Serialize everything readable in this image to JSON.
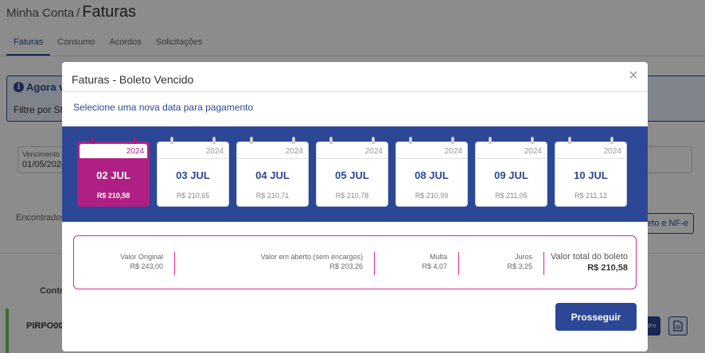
{
  "page": {
    "breadcrumb": "Minha Conta",
    "breadcrumb_sep": "/",
    "title": "Faturas",
    "tabs": [
      {
        "label": "Faturas",
        "active": true
      },
      {
        "label": "Consumo",
        "active": false
      },
      {
        "label": "Acordos",
        "active": false
      },
      {
        "label": "Solicitações",
        "active": false
      }
    ],
    "info_title": "Agora vo",
    "info_text": "Filtre por Sta",
    "due_label": "Vencimento",
    "due_value": "01/05/2024",
    "found_text": "Encontrados",
    "boleto_button": "eto e NF-e",
    "contract_header": "Contra",
    "row_id": "PIRPO000",
    "nfe_button": "NFe",
    "accent_color": "#2b4796",
    "status_color": "#6cbf59"
  },
  "modal": {
    "title": "Faturas - Boleto Vencido",
    "close_icon": "close-icon",
    "subtitle": "Selecione uma nova data para pagamento",
    "dates": [
      {
        "year": "2024",
        "day": "02 JUL",
        "amount": "R$ 210,58",
        "selected": true
      },
      {
        "year": "2024",
        "day": "03 JUL",
        "amount": "R$ 210,65",
        "selected": false
      },
      {
        "year": "2024",
        "day": "04 JUL",
        "amount": "R$ 210,71",
        "selected": false
      },
      {
        "year": "2024",
        "day": "05 JUL",
        "amount": "R$ 210,78",
        "selected": false
      },
      {
        "year": "2024",
        "day": "08 JUL",
        "amount": "R$ 210,99",
        "selected": false
      },
      {
        "year": "2024",
        "day": "09 JUL",
        "amount": "R$ 211,05",
        "selected": false
      },
      {
        "year": "2024",
        "day": "10 JUL",
        "amount": "R$ 211,12",
        "selected": false
      }
    ],
    "summary": {
      "original_label": "Valor Original",
      "original_value": "R$ 243,00",
      "open_label": "Valor em aberto (sem encargos)",
      "open_value": "R$ 203,26",
      "fine_label": "Multa",
      "fine_value": "R$ 4,07",
      "interest_label": "Juros",
      "interest_value": "R$ 3,25",
      "total_label": "Valor total do boleto",
      "total_value": "R$ 210,58"
    },
    "proceed_button": "Prosseguir",
    "selected_color": "#b01f83",
    "band_color": "#2b4796"
  }
}
